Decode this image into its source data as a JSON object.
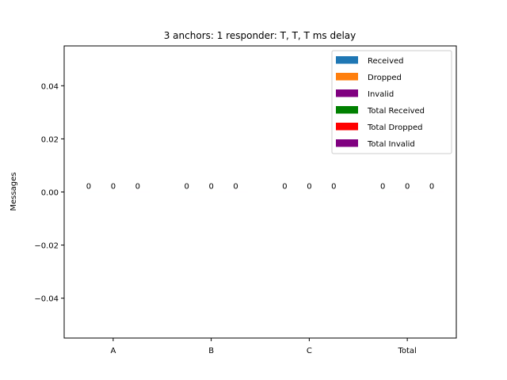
{
  "chart_data": {
    "type": "bar",
    "title": "3 anchors: 1 responder: T, T, T ms delay",
    "xlabel": "",
    "ylabel": "Messages",
    "categories": [
      "A",
      "B",
      "C",
      "Total"
    ],
    "ylim": [
      -0.055,
      0.055
    ],
    "yticks": [
      -0.04,
      -0.02,
      0.0,
      0.02,
      0.04
    ],
    "ytick_labels": [
      "−0.04",
      "−0.02",
      "0.00",
      "0.02",
      "0.04"
    ],
    "grid": false,
    "legend_position": "top-right",
    "series": [
      {
        "name": "Received",
        "color": "#1f77b4",
        "values": [
          0,
          0,
          0,
          null
        ]
      },
      {
        "name": "Dropped",
        "color": "#ff7f0e",
        "values": [
          0,
          0,
          0,
          null
        ]
      },
      {
        "name": "Invalid",
        "color": "#800080",
        "values": [
          0,
          0,
          0,
          null
        ]
      },
      {
        "name": "Total Received",
        "color": "#008000",
        "values": [
          null,
          null,
          null,
          0
        ]
      },
      {
        "name": "Total Dropped",
        "color": "#ff0000",
        "values": [
          null,
          null,
          null,
          0
        ]
      },
      {
        "name": "Total Invalid",
        "color": "#800080",
        "values": [
          null,
          null,
          null,
          0
        ]
      }
    ]
  }
}
